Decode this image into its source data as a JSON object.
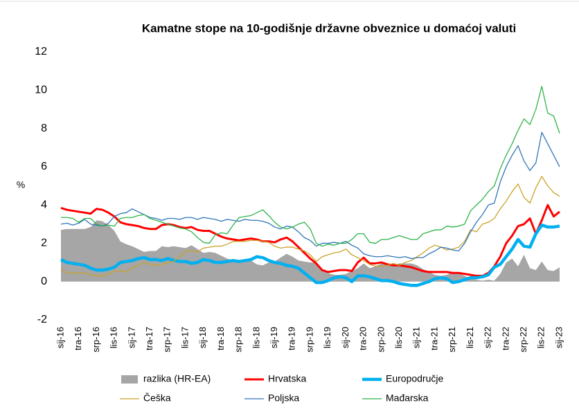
{
  "chart_data": {
    "type": "line",
    "title": "Kamatne stope na 10-godišnje državne obveznice u domaćoj valuti",
    "y_label": "%",
    "categories": [
      "sij-16",
      null,
      null,
      "tra-16",
      null,
      null,
      "srp-16",
      null,
      null,
      "lis-16",
      null,
      null,
      "sij-17",
      null,
      null,
      "tra-17",
      null,
      null,
      "srp-17",
      null,
      null,
      "lis-17",
      null,
      null,
      "sij-18",
      null,
      null,
      "tra-18",
      null,
      null,
      "srp-18",
      null,
      null,
      "lis-18",
      null,
      null,
      "sij-19",
      null,
      null,
      "tra-19",
      null,
      null,
      "srp-19",
      null,
      null,
      "lis-19",
      null,
      null,
      "sij-20",
      null,
      null,
      "tra-20",
      null,
      null,
      "srp-20",
      null,
      null,
      "lis-20",
      null,
      null,
      "sij-21",
      null,
      null,
      "tra-21",
      null,
      null,
      "srp-21",
      null,
      null,
      "lis-21",
      null,
      null,
      "sij-22",
      null,
      null,
      "tra-22",
      null,
      null,
      "srp-22",
      null,
      null,
      "lis-22",
      null,
      null,
      "sij-23"
    ],
    "ylim": [
      -2,
      12
    ],
    "yticks": [
      -2,
      0,
      2,
      4,
      6,
      8,
      10,
      12
    ],
    "grid": false,
    "series": [
      {
        "name": "razlika (HR-EA)",
        "type": "area",
        "color": "#a6a6a6",
        "values": [
          2.7,
          2.75,
          2.75,
          2.75,
          2.75,
          2.85,
          3.2,
          3.15,
          2.95,
          2.65,
          2.1,
          1.95,
          1.85,
          1.7,
          1.55,
          1.6,
          1.6,
          1.85,
          1.8,
          1.85,
          1.8,
          1.75,
          1.9,
          1.7,
          1.5,
          1.55,
          1.5,
          1.35,
          1.2,
          1.1,
          1.1,
          1.1,
          1.1,
          0.9,
          0.85,
          1.0,
          1.05,
          1.25,
          1.45,
          1.3,
          1.1,
          1.05,
          1.0,
          1.0,
          0.65,
          0.45,
          0.35,
          0.35,
          0.4,
          0.55,
          0.7,
          0.95,
          0.7,
          0.8,
          0.95,
          0.85,
          0.85,
          0.95,
          0.95,
          0.95,
          0.85,
          0.65,
          0.5,
          0.35,
          0.3,
          0.35,
          0.5,
          0.45,
          0.3,
          0.15,
          0.1,
          0.05,
          0.1,
          0.05,
          0.4,
          1.0,
          1.2,
          0.8,
          1.4,
          0.7,
          0.6,
          1.05,
          0.6,
          0.55,
          0.75
        ]
      },
      {
        "name": "Hrvatska",
        "color": "#ff0000",
        "width": 3,
        "values": [
          3.85,
          3.75,
          3.7,
          3.65,
          3.6,
          3.55,
          3.8,
          3.75,
          3.6,
          3.4,
          3.1,
          3.0,
          2.95,
          2.9,
          2.8,
          2.75,
          2.75,
          2.95,
          3.0,
          2.95,
          2.85,
          2.8,
          2.85,
          2.7,
          2.65,
          2.65,
          2.5,
          2.35,
          2.25,
          2.2,
          2.15,
          2.2,
          2.25,
          2.2,
          2.1,
          2.1,
          2.05,
          2.2,
          2.3,
          2.1,
          1.8,
          1.5,
          1.2,
          0.95,
          0.6,
          0.5,
          0.55,
          0.6,
          0.6,
          0.55,
          1.0,
          1.25,
          0.95,
          0.95,
          1.0,
          0.9,
          0.85,
          0.85,
          0.8,
          0.75,
          0.65,
          0.55,
          0.5,
          0.5,
          0.5,
          0.5,
          0.45,
          0.45,
          0.4,
          0.35,
          0.3,
          0.3,
          0.45,
          0.8,
          1.3,
          2.0,
          2.4,
          2.9,
          3.0,
          3.3,
          2.5,
          3.2,
          4.0,
          3.4,
          3.65
        ]
      },
      {
        "name": "Europodručje",
        "color": "#00b0f0",
        "width": 4.5,
        "values": [
          1.15,
          1.0,
          0.95,
          0.9,
          0.85,
          0.7,
          0.6,
          0.6,
          0.65,
          0.75,
          1.0,
          1.05,
          1.1,
          1.2,
          1.25,
          1.15,
          1.15,
          1.1,
          1.2,
          1.1,
          1.05,
          1.05,
          0.95,
          1.0,
          1.15,
          1.1,
          1.0,
          1.0,
          1.05,
          1.1,
          1.05,
          1.1,
          1.15,
          1.3,
          1.25,
          1.1,
          1.0,
          0.95,
          0.85,
          0.8,
          0.7,
          0.45,
          0.2,
          -0.05,
          -0.05,
          0.05,
          0.2,
          0.25,
          0.2,
          0.0,
          0.3,
          0.3,
          0.25,
          0.15,
          0.05,
          0.05,
          0.0,
          -0.1,
          -0.15,
          -0.2,
          -0.2,
          -0.1,
          0.0,
          0.15,
          0.2,
          0.15,
          -0.05,
          0.0,
          0.1,
          0.2,
          0.2,
          0.25,
          0.35,
          0.75,
          0.9,
          1.3,
          1.7,
          2.2,
          1.85,
          1.8,
          2.5,
          2.95,
          2.85,
          2.85,
          2.9
        ]
      },
      {
        "name": "Češka",
        "color": "#c9a227",
        "width": 1.3,
        "values": [
          0.65,
          0.45,
          0.45,
          0.45,
          0.45,
          0.35,
          0.3,
          0.3,
          0.4,
          0.55,
          0.55,
          0.5,
          0.7,
          0.85,
          1.0,
          0.9,
          0.85,
          0.9,
          1.0,
          1.05,
          1.3,
          1.6,
          1.6,
          1.55,
          1.75,
          1.8,
          1.85,
          1.85,
          1.95,
          2.1,
          2.1,
          2.1,
          2.15,
          2.15,
          2.1,
          2.05,
          1.85,
          1.75,
          1.8,
          1.8,
          1.7,
          1.6,
          1.4,
          1.05,
          1.3,
          1.4,
          1.5,
          1.55,
          1.7,
          1.4,
          1.25,
          1.1,
          0.9,
          0.8,
          0.8,
          0.85,
          0.95,
          0.85,
          1.0,
          1.1,
          1.3,
          1.5,
          1.75,
          1.9,
          1.8,
          1.65,
          1.7,
          1.8,
          2.1,
          2.7,
          2.6,
          3.0,
          3.1,
          3.3,
          3.8,
          4.2,
          4.7,
          5.1,
          4.4,
          4.1,
          4.9,
          5.5,
          5.0,
          4.65,
          4.45
        ]
      },
      {
        "name": "Poljska",
        "color": "#2e75b6",
        "width": 1.3,
        "values": [
          3.0,
          3.05,
          2.95,
          3.05,
          3.25,
          3.0,
          2.95,
          2.9,
          3.05,
          3.4,
          3.55,
          3.6,
          3.8,
          3.65,
          3.5,
          3.35,
          3.3,
          3.2,
          3.3,
          3.3,
          3.25,
          3.35,
          3.35,
          3.25,
          3.35,
          3.3,
          3.25,
          3.15,
          3.25,
          3.2,
          3.15,
          3.25,
          3.2,
          3.2,
          3.15,
          3.05,
          2.85,
          2.75,
          2.9,
          2.85,
          2.6,
          2.3,
          2.15,
          1.85,
          2.0,
          2.0,
          2.05,
          2.0,
          2.1,
          1.9,
          1.75,
          1.45,
          1.35,
          1.3,
          1.3,
          1.35,
          1.3,
          1.25,
          1.3,
          1.2,
          1.25,
          1.25,
          1.45,
          1.6,
          1.8,
          1.75,
          1.65,
          1.6,
          2.0,
          2.6,
          3.1,
          3.5,
          4.0,
          4.1,
          5.2,
          6.0,
          6.6,
          7.1,
          6.3,
          5.8,
          6.2,
          7.8,
          7.2,
          6.6,
          6.0
        ]
      },
      {
        "name": "Mađarska",
        "color": "#2eb34a",
        "width": 1.3,
        "values": [
          3.35,
          3.35,
          3.3,
          3.1,
          3.3,
          3.3,
          3.0,
          2.9,
          2.95,
          2.9,
          3.3,
          3.35,
          3.35,
          3.45,
          3.5,
          3.3,
          3.2,
          3.1,
          3.0,
          2.9,
          2.8,
          2.75,
          2.6,
          2.3,
          2.05,
          2.0,
          2.45,
          2.55,
          2.5,
          2.95,
          3.35,
          3.4,
          3.45,
          3.6,
          3.75,
          3.45,
          3.1,
          2.85,
          2.75,
          2.85,
          3.0,
          3.1,
          2.75,
          2.0,
          1.85,
          1.95,
          1.9,
          2.0,
          2.0,
          2.2,
          2.5,
          2.5,
          2.05,
          2.0,
          2.2,
          2.2,
          2.3,
          2.4,
          2.3,
          2.2,
          2.2,
          2.5,
          2.6,
          2.7,
          2.7,
          2.9,
          2.85,
          2.9,
          3.0,
          3.7,
          4.0,
          4.3,
          4.7,
          5.0,
          5.9,
          6.6,
          7.2,
          7.9,
          8.5,
          8.2,
          9.0,
          10.2,
          8.8,
          8.65,
          7.75
        ]
      }
    ]
  }
}
